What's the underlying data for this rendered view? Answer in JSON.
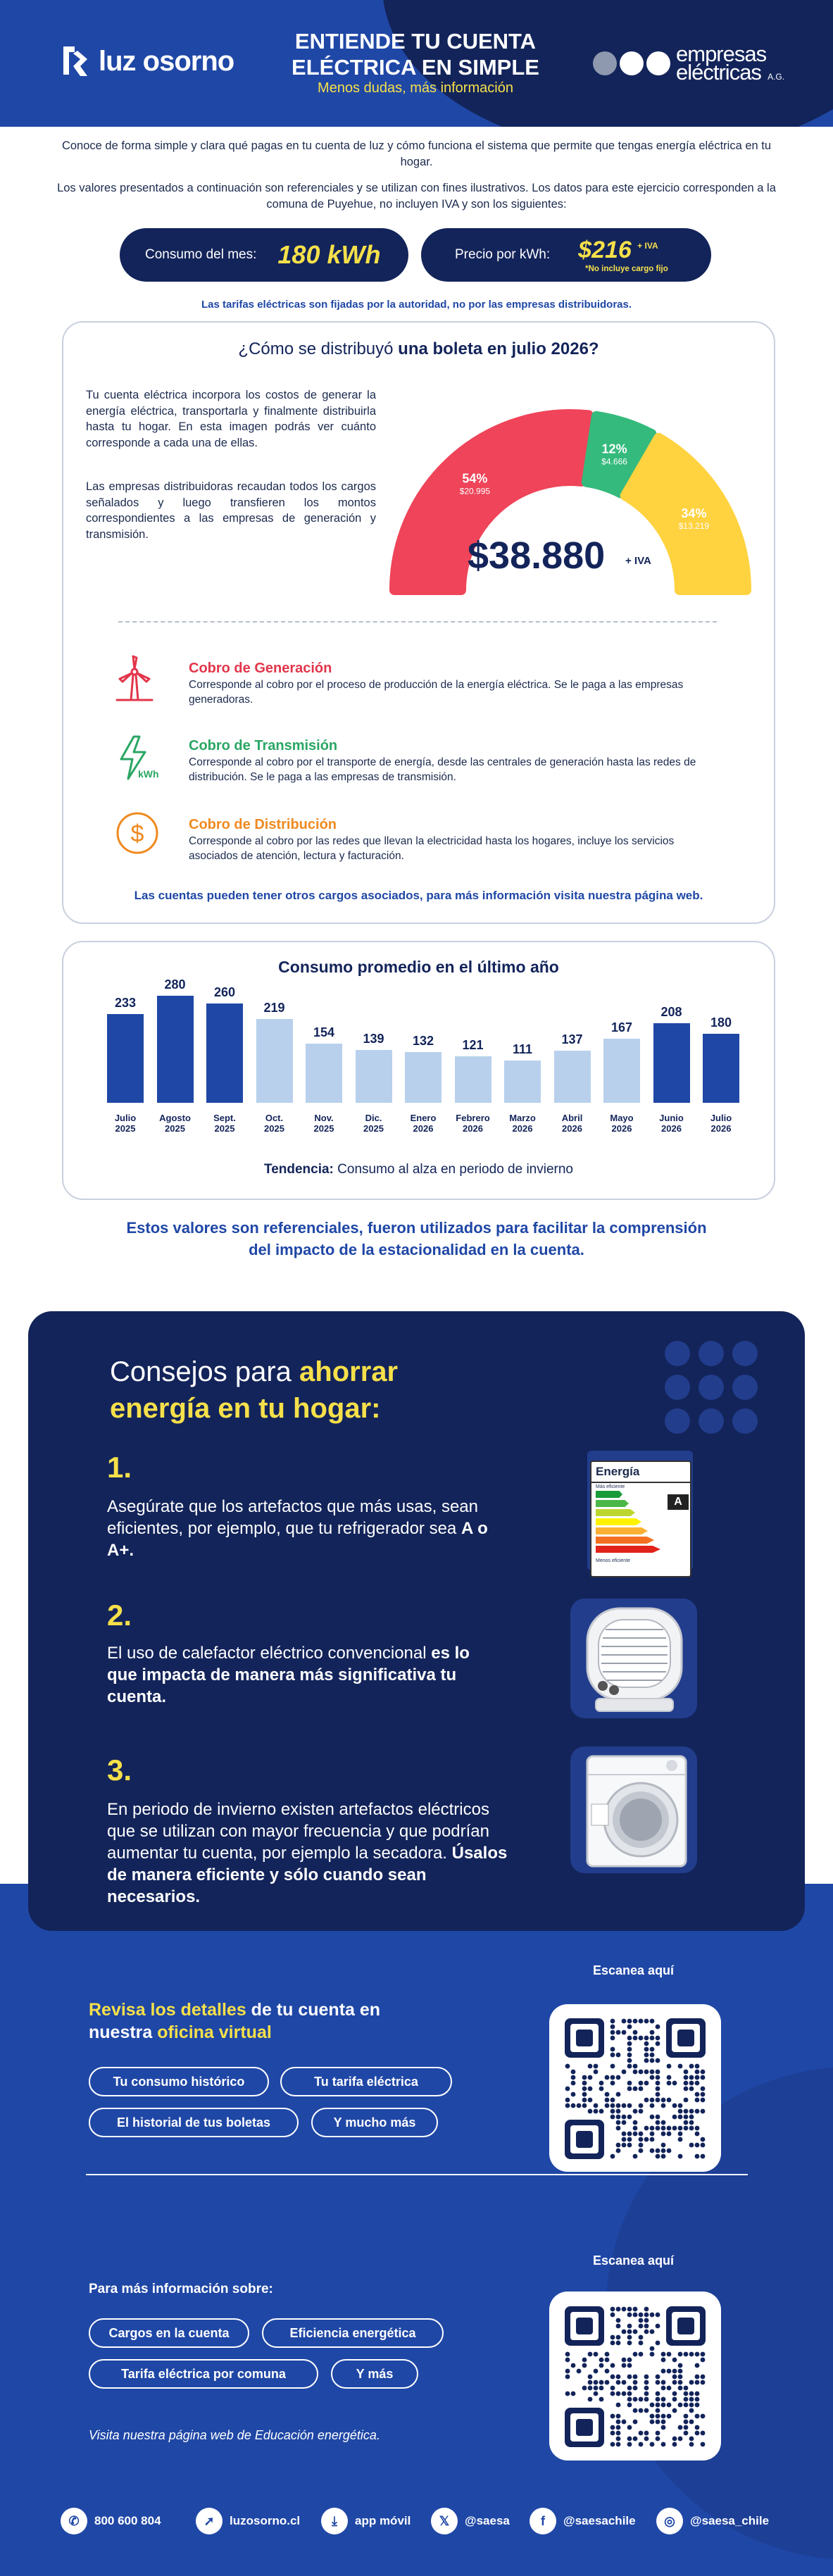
{
  "header": {
    "logo_left": "luz osorno",
    "title_line1": "ENTIENDE TU CUENTA",
    "title_line2": "ELÉCTRICA EN SIMPLE",
    "subtitle": "Menos dudas, más información",
    "logo_right_line1": "empresas",
    "logo_right_line2": "eléctricas",
    "logo_right_suffix": "A.G.",
    "dot_colors": [
      "#8e98ae",
      "#ffffff",
      "#ffffff"
    ]
  },
  "intro": {
    "p1": "Conoce de forma simple y clara qué pagas en tu cuenta de luz y cómo funciona el sistema que permite que tengas energía eléctrica en tu hogar.",
    "p2": "Los valores presentados a continuación son referenciales y se utilizan con fines ilustrativos. Los datos para este ejercicio corresponden a la comuna de Puyehue, no incluyen IVA y son los siguientes:"
  },
  "stats": {
    "consumo_label": "Consumo del mes:",
    "consumo_value": "180 kWh",
    "precio_label": "Precio por kWh:",
    "precio_value": "$216",
    "precio_iva": "+ IVA",
    "precio_note": "*No incluye cargo fijo"
  },
  "tarifas_note": "Las tarifas eléctricas son fijadas por la autoridad, no por las empresas distribuidoras.",
  "distribution": {
    "title_pre": "¿Cómo se distribuyó ",
    "title_bold": "una boleta en julio 2026?",
    "p1": "Tu cuenta eléctrica incorpora los costos de generar la energía eléctrica, transportarla y finalmente distribuirla hasta tu hogar. En esta imagen podrás ver cuánto corresponde a cada una de ellas.",
    "p2": "Las empresas distribuidoras recaudan todos los cargos señalados y luego transfieren los montos correspondientes a las empresas de generación y transmisión.",
    "total": "$38.880",
    "total_iva": "+ IVA",
    "segments": [
      {
        "pct": "54%",
        "amount": "$20.995",
        "color": "#ef4459"
      },
      {
        "pct": "12%",
        "amount": "$4.666",
        "color": "#34ba7c"
      },
      {
        "pct": "34%",
        "amount": "$13.219",
        "color": "#ffd23f"
      }
    ],
    "charges": [
      {
        "title": "Cobro de Generación",
        "desc": "Corresponde al cobro por el proceso de producción de la energía eléctrica. Se le paga a las empresas generadoras.",
        "color": "#e2354a",
        "icon": "wind-turbine-icon"
      },
      {
        "title": "Cobro de Transmisión",
        "desc": "Corresponde al cobro por el transporte de energía, desde las centrales de generación hasta las redes de distribución. Se le paga a las empresas de transmisión.",
        "color": "#2aa663",
        "icon": "lightning-kwh-icon"
      },
      {
        "title": "Cobro de Distribución",
        "desc": "Corresponde al cobro por las redes que llevan la electricidad hasta los hogares, incluye los servicios asociados de atención, lectura y facturación.",
        "color": "#ef8a1f",
        "icon": "dollar-coin-icon"
      }
    ],
    "footer": "Las cuentas pueden tener otros cargos asociados, para más información visita nuestra página web.",
    "kwh_icon_text": "kWh",
    "dollar_symbol": "$"
  },
  "consumption": {
    "title": "Consumo promedio en el último año",
    "trend_label": "Tendencia:",
    "trend_text": " Consumo al alza en periodo de invierno"
  },
  "chart_data": {
    "type": "bar",
    "title": "Consumo promedio en el último año",
    "categories": [
      "Julio 2025",
      "Agosto 2025",
      "Sept. 2025",
      "Oct. 2025",
      "Nov. 2025",
      "Dic. 2025",
      "Enero 2026",
      "Febrero 2026",
      "Marzo 2026",
      "Abril 2026",
      "Mayo 2026",
      "Junio 2026",
      "Julio 2026"
    ],
    "cat_line1": [
      "Julio",
      "Agosto",
      "Sept.",
      "Oct.",
      "Nov.",
      "Dic.",
      "Enero",
      "Febrero",
      "Marzo",
      "Abril",
      "Mayo",
      "Junio",
      "Julio"
    ],
    "cat_line2": [
      "2025",
      "2025",
      "2025",
      "2025",
      "2025",
      "2025",
      "2026",
      "2026",
      "2026",
      "2026",
      "2026",
      "2026",
      "2026"
    ],
    "values": [
      233,
      280,
      260,
      219,
      154,
      139,
      132,
      121,
      111,
      137,
      167,
      208,
      180
    ],
    "highlight": [
      true,
      true,
      true,
      false,
      false,
      false,
      false,
      false,
      false,
      false,
      false,
      true,
      true
    ],
    "colors": {
      "winter": "#1f47a6",
      "other": "#b8d0ec"
    },
    "ylim": [
      0,
      280
    ],
    "grid": false
  },
  "disclaimer": {
    "line1": "Estos valores son referenciales, fueron utilizados para facilitar la comprensión",
    "line2": "del impacto de la estacionalidad en la cuenta."
  },
  "tips": {
    "title_pre": "Consejos para ",
    "title_yellow1": "ahorrar",
    "title_yellow2": "energía en tu hogar:",
    "items": [
      {
        "num": "1.",
        "text_pre": "Asegúrate que los artefactos que más usas, sean eficientes, por ejemplo, que tu refrigerador sea ",
        "text_bold": "A o A+.",
        "text_post": ""
      },
      {
        "num": "2.",
        "text_pre": "El uso de calefactor eléctrico convencional ",
        "text_bold": "es lo que impacta de manera más significativa tu cuenta.",
        "text_post": ""
      },
      {
        "num": "3.",
        "text_pre": "En periodo de invierno existen artefactos eléctricos que se utilizan con mayor frecuencia y que podrían aumentar tu cuenta, por ejemplo la secadora. ",
        "text_bold": "Úsalos de manera eficiente y sólo cuando sean necesarios.",
        "text_post": ""
      }
    ],
    "energy_label": {
      "title": "Energía",
      "top": "Más eficiente",
      "bottom": "Menos eficiente",
      "grade": "A"
    }
  },
  "office": {
    "scan1": "Escanea aquí",
    "heading_y1": "Revisa los detalles",
    "heading_w1": " de tu cuenta en",
    "heading_w2": "nuestra ",
    "heading_y2": "oficina virtual",
    "chips": [
      "Tu consumo histórico",
      "Tu tarifa eléctrica",
      "El historial de tus boletas",
      "Y mucho más"
    ]
  },
  "info": {
    "scan2": "Escanea aquí",
    "heading": "Para más información sobre:",
    "chips": [
      "Cargos en la cuenta",
      "Eficiencia energética",
      "Tarifa eléctrica por comuna",
      "Y más"
    ],
    "note": "Visita nuestra página web de Educación energética."
  },
  "footer": [
    {
      "icon": "phone-icon",
      "glyph": "✆",
      "text": "800 600 804"
    },
    {
      "icon": "cursor-icon",
      "glyph": "➚",
      "text": "luzosorno.cl"
    },
    {
      "icon": "download-icon",
      "glyph": "⤓",
      "text": "app móvil"
    },
    {
      "icon": "x-icon",
      "glyph": "𝕏",
      "text": "@saesa"
    },
    {
      "icon": "facebook-icon",
      "glyph": "f",
      "text": "@saesachile"
    },
    {
      "icon": "instagram-icon",
      "glyph": "◎",
      "text": "@saesa_chile"
    }
  ]
}
